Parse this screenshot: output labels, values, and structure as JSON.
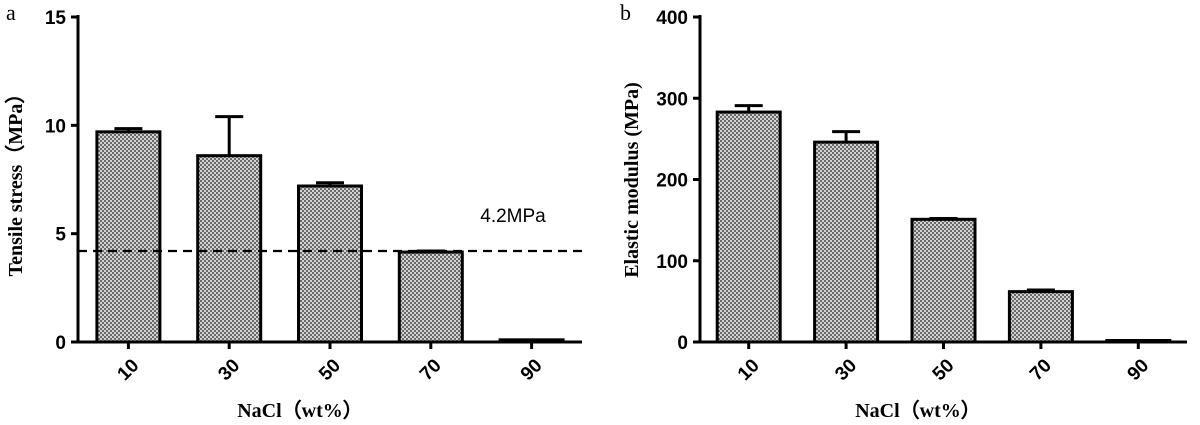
{
  "chart_data": [
    {
      "type": "bar",
      "panel": "a",
      "categories": [
        "10",
        "30",
        "50",
        "70",
        "90"
      ],
      "values": [
        9.7,
        8.6,
        7.2,
        4.15,
        0.1
      ],
      "errors": [
        0.15,
        1.8,
        0.15,
        0.05,
        0.0
      ],
      "xlabel": "NaCl（wt%）",
      "ylabel": "Tensile stress（MPa）",
      "ylim": [
        0,
        15
      ],
      "yticks": [
        "0",
        "5",
        "10",
        "15"
      ],
      "reference_line": {
        "value": 4.2,
        "label": "4.2MPa",
        "style": "dashed"
      },
      "grid": false,
      "bar_fill": "crosshatch-gray"
    },
    {
      "type": "bar",
      "panel": "b",
      "categories": [
        "10",
        "30",
        "50",
        "70",
        "90"
      ],
      "values": [
        283,
        246,
        151,
        62,
        1
      ],
      "errors": [
        8,
        13,
        1,
        2,
        0
      ],
      "xlabel": "NaCl（wt%）",
      "ylabel": "Elastic modulus (MPa)",
      "ylim": [
        0,
        400
      ],
      "yticks": [
        "0",
        "100",
        "200",
        "300",
        "400"
      ],
      "grid": false,
      "bar_fill": "crosshatch-gray"
    }
  ]
}
